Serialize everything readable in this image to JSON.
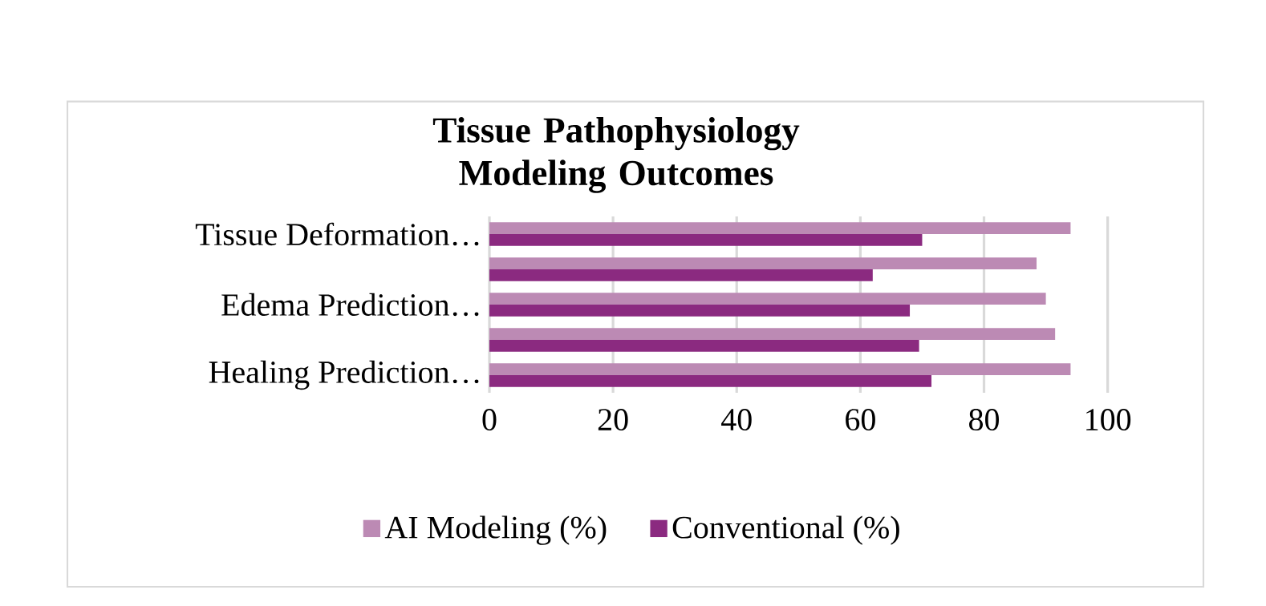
{
  "chart_data": {
    "type": "bar",
    "orientation": "horizontal",
    "title": "Tissue Pathophysiology Modeling Outcomes",
    "categories": [
      "Tissue Deformation…",
      null,
      "Edema Prediction…",
      null,
      "Healing Prediction…"
    ],
    "series": [
      {
        "name": "AI Modeling (%)",
        "color": "#bc8ab4",
        "values": [
          94,
          88.5,
          90,
          91.5,
          94
        ]
      },
      {
        "name": "Conventional (%)",
        "color": "#8b2a80",
        "values": [
          70,
          62,
          68,
          69.5,
          71.5
        ]
      }
    ],
    "xlim": [
      0,
      100
    ],
    "xticks": [
      0,
      20,
      40,
      60,
      80,
      100
    ],
    "grid": "x",
    "legend": "bottom"
  }
}
